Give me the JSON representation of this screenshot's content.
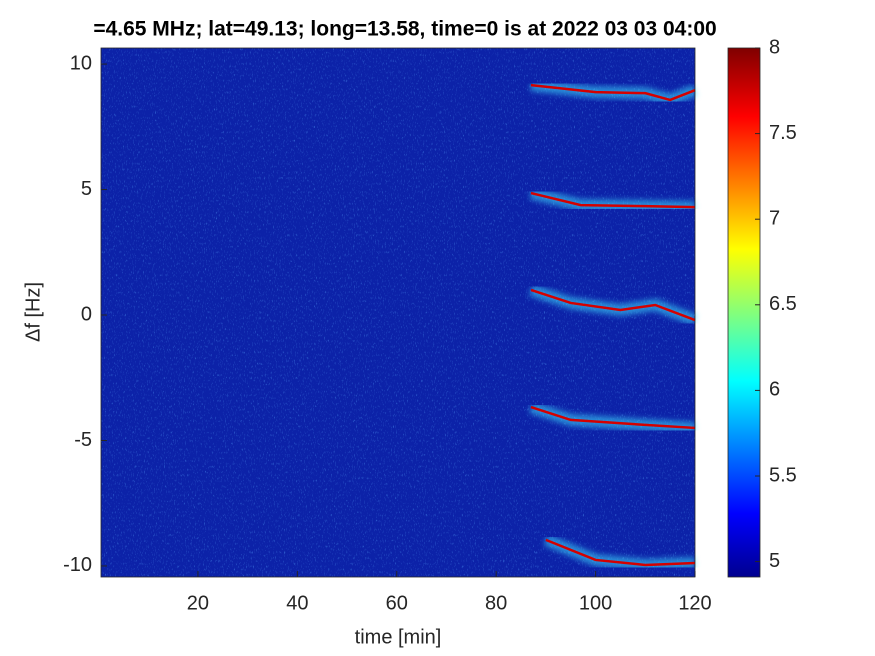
{
  "chart_data": {
    "type": "heatmap",
    "title": "=4.65 MHz;  lat=49.13; long=13.58, time=0 is at 2022 03 03 04:00",
    "x_label": "time [min]",
    "y_label": "Δf [Hz]",
    "xlim": [
      0.5,
      120
    ],
    "xticks": [
      20,
      40,
      60,
      80,
      100,
      120
    ],
    "ylim": [
      -10.44,
      10.64
    ],
    "yticks": [
      -10,
      -5,
      0,
      5,
      10
    ],
    "clim": [
      4.91,
      8
    ],
    "cticks": [
      5,
      5.5,
      6,
      6.5,
      7,
      7.5,
      8
    ],
    "background_color": "#0c22a8",
    "trace_color": "#d40000",
    "series": [
      {
        "x": [
          87,
          100,
          110,
          115,
          120
        ],
        "values": [
          9.16,
          8.88,
          8.84,
          8.57,
          8.96
        ]
      },
      {
        "x": [
          87,
          97,
          110,
          120
        ],
        "values": [
          4.86,
          4.38,
          4.34,
          4.3
        ]
      },
      {
        "x": [
          87,
          95,
          105,
          112,
          120
        ],
        "values": [
          1.0,
          0.48,
          0.2,
          0.4,
          -0.2
        ]
      },
      {
        "x": [
          87,
          95,
          110,
          120
        ],
        "values": [
          -3.67,
          -4.18,
          -4.38,
          -4.5
        ]
      },
      {
        "x": [
          90,
          100,
          110,
          120
        ],
        "values": [
          -8.96,
          -9.76,
          -9.96,
          -9.88
        ]
      }
    ]
  }
}
